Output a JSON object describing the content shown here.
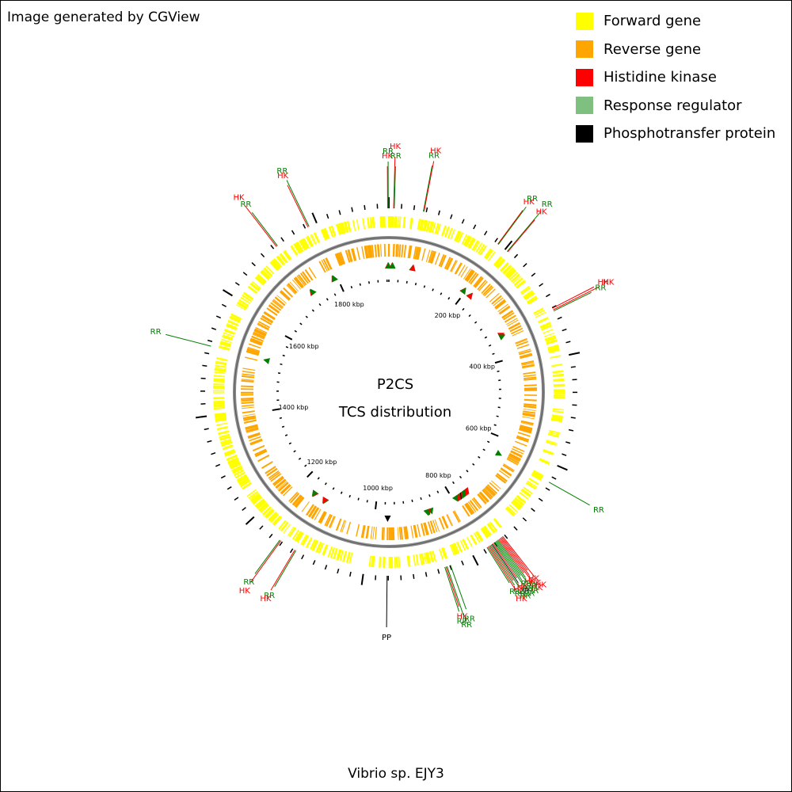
{
  "credit": "Image generated by CGView",
  "legend": [
    {
      "label": "Forward gene",
      "color": "#ffff00"
    },
    {
      "label": "Reverse gene",
      "color": "#ffa500"
    },
    {
      "label": "Histidine kinase",
      "color": "#ff0000"
    },
    {
      "label": "Response regulator",
      "color": "#7fbf7f"
    },
    {
      "label": "Phosphotransfer protein",
      "color": "#000000"
    }
  ],
  "center": {
    "title": "P2CS",
    "subtitle": "TCS distribution"
  },
  "footer": "Vibrio sp. EJY3",
  "genome_length_kbp": 1930,
  "tick_labels": [
    {
      "text": "200 kbp",
      "kbp": 200
    },
    {
      "text": "400 kbp",
      "kbp": 400
    },
    {
      "text": "600 kbp",
      "kbp": 600
    },
    {
      "text": "800 kbp",
      "kbp": 800
    },
    {
      "text": "1000 kbp",
      "kbp": 1000
    },
    {
      "text": "1200 kbp",
      "kbp": 1200
    },
    {
      "text": "1400 kbp",
      "kbp": 1400
    },
    {
      "text": "1600 kbp",
      "kbp": 1600
    },
    {
      "text": "1800 kbp",
      "kbp": 1800
    }
  ],
  "callouts": [
    {
      "label": "HK",
      "type": "HK",
      "kbp": 1928
    },
    {
      "label": "RR",
      "type": "RR",
      "kbp": 1929
    },
    {
      "label": "HK",
      "type": "HK",
      "kbp": 8
    },
    {
      "label": "RR",
      "type": "RR",
      "kbp": 9
    },
    {
      "label": "RR",
      "type": "RR",
      "kbp": 58
    },
    {
      "label": "HK",
      "type": "HK",
      "kbp": 59
    },
    {
      "label": "HK",
      "type": "HK",
      "kbp": 195
    },
    {
      "label": "RR",
      "type": "RR",
      "kbp": 196
    },
    {
      "label": "RR",
      "type": "RR",
      "kbp": 215
    },
    {
      "label": "HK",
      "type": "HK",
      "kbp": 216
    },
    {
      "label": "HK",
      "type": "HK",
      "kbp": 337
    },
    {
      "label": "HK",
      "type": "HK",
      "kbp": 340
    },
    {
      "label": "RR",
      "type": "RR",
      "kbp": 342
    },
    {
      "label": "RR",
      "type": "RR",
      "kbp": 640
    },
    {
      "label": "HK",
      "type": "HK",
      "kbp": 760
    },
    {
      "label": "HK",
      "type": "HK",
      "kbp": 762
    },
    {
      "label": "HK",
      "type": "HK",
      "kbp": 764
    },
    {
      "label": "HK",
      "type": "HK",
      "kbp": 766
    },
    {
      "label": "HK",
      "type": "HK",
      "kbp": 768
    },
    {
      "label": "RR",
      "type": "RR",
      "kbp": 770
    },
    {
      "label": "RR",
      "type": "RR",
      "kbp": 772
    },
    {
      "label": "RR",
      "type": "RR",
      "kbp": 774
    },
    {
      "label": "RR",
      "type": "RR",
      "kbp": 776
    },
    {
      "label": "RR",
      "type": "RR",
      "kbp": 778
    },
    {
      "label": "HK",
      "type": "HK",
      "kbp": 780
    },
    {
      "label": "PP",
      "type": "PP",
      "kbp": 782
    },
    {
      "label": "RR",
      "type": "RR",
      "kbp": 784
    },
    {
      "label": "HK",
      "type": "HK",
      "kbp": 786
    },
    {
      "label": "RR",
      "type": "RR",
      "kbp": 788
    },
    {
      "label": "HK",
      "type": "HK",
      "kbp": 790
    },
    {
      "label": "RR",
      "type": "RR",
      "kbp": 792
    },
    {
      "label": "RR",
      "type": "RR",
      "kbp": 860
    },
    {
      "label": "RR",
      "type": "RR",
      "kbp": 866
    },
    {
      "label": "HK",
      "type": "HK",
      "kbp": 868
    },
    {
      "label": "RR",
      "type": "RR",
      "kbp": 870
    },
    {
      "label": "PP",
      "type": "PP",
      "kbp": 968
    },
    {
      "label": "RR",
      "type": "RR",
      "kbp": 1128
    },
    {
      "label": "HK",
      "type": "HK",
      "kbp": 1130
    },
    {
      "label": "HK",
      "type": "HK",
      "kbp": 1158
    },
    {
      "label": "RR",
      "type": "RR",
      "kbp": 1160
    },
    {
      "label": "RR",
      "type": "RR",
      "kbp": 1525
    },
    {
      "label": "HK",
      "type": "HK",
      "kbp": 1728
    },
    {
      "label": "RR",
      "type": "RR",
      "kbp": 1730
    },
    {
      "label": "HK",
      "type": "HK",
      "kbp": 1790
    },
    {
      "label": "RR",
      "type": "RR",
      "kbp": 1792
    }
  ],
  "type_colors": {
    "HK": "#ff0000",
    "RR": "#007f00",
    "PP": "#000000"
  }
}
